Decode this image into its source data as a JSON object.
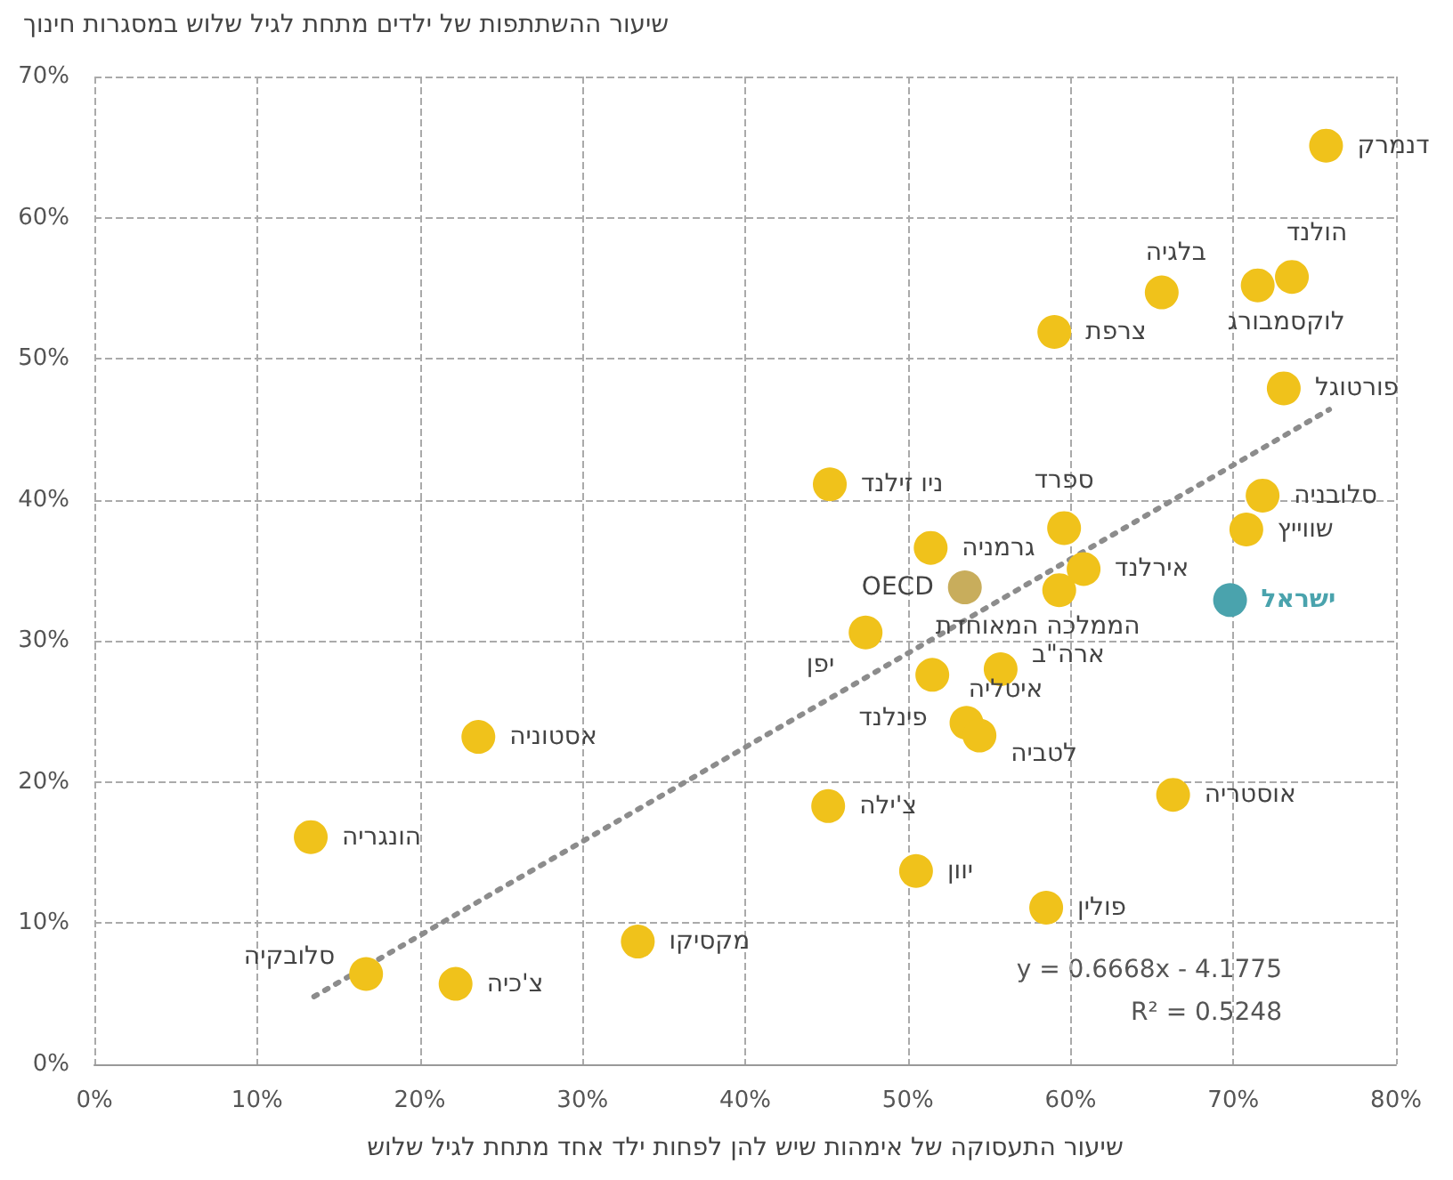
{
  "chart_data": {
    "type": "scatter",
    "ylabel": "שיעור ההשתתפות של ילדים מתחת לגיל שלוש במסגרות חינוך",
    "xlabel": "שיעור התעסוקה של אימהות שיש להן לפחות ילד אחד מתחת לגיל שלוש",
    "xlim": [
      0,
      80
    ],
    "ylim": [
      0,
      70
    ],
    "xticks": [
      {
        "value": 0,
        "label": "0%"
      },
      {
        "value": 10,
        "label": "10%"
      },
      {
        "value": 20,
        "label": "20%"
      },
      {
        "value": 30,
        "label": "30%"
      },
      {
        "value": 40,
        "label": "40%"
      },
      {
        "value": 50,
        "label": "50%"
      },
      {
        "value": 60,
        "label": "60%"
      },
      {
        "value": 70,
        "label": "70%"
      },
      {
        "value": 80,
        "label": "80%"
      }
    ],
    "yticks": [
      {
        "value": 0,
        "label": "0%"
      },
      {
        "value": 10,
        "label": "10%"
      },
      {
        "value": 20,
        "label": "20%"
      },
      {
        "value": 30,
        "label": "30%"
      },
      {
        "value": 40,
        "label": "40%"
      },
      {
        "value": 50,
        "label": "50%"
      },
      {
        "value": 60,
        "label": "60%"
      },
      {
        "value": 70,
        "label": "70%"
      }
    ],
    "grid": true,
    "legend": false,
    "marker": "circle",
    "series": [
      {
        "name": "דנמרק",
        "color": "#f0c21b",
        "x": [
          75.7
        ],
        "values": [
          65.1
        ]
      },
      {
        "name": "הולנד",
        "color": "#f0c21b",
        "x": [
          73.6
        ],
        "values": [
          55.8
        ]
      },
      {
        "name": "לוקסמבורג",
        "color": "#f0c21b",
        "x": [
          71.5
        ],
        "values": [
          55.2
        ]
      },
      {
        "name": "בלגיה",
        "color": "#f0c21b",
        "x": [
          65.6
        ],
        "values": [
          54.7
        ]
      },
      {
        "name": "צרפת",
        "color": "#f0c21b",
        "x": [
          59.0
        ],
        "values": [
          51.9
        ]
      },
      {
        "name": "פורטוגל",
        "color": "#f0c21b",
        "x": [
          73.1
        ],
        "values": [
          47.9
        ]
      },
      {
        "name": "סלובניה",
        "color": "#f0c21b",
        "x": [
          71.8
        ],
        "values": [
          40.3
        ]
      },
      {
        "name": "שווייץ",
        "color": "#f0c21b",
        "x": [
          70.8
        ],
        "values": [
          37.9
        ]
      },
      {
        "name": "ספרד",
        "color": "#f0c21b",
        "x": [
          59.6
        ],
        "values": [
          38.0
        ]
      },
      {
        "name": "ניו זילנד",
        "color": "#f0c21b",
        "x": [
          45.2
        ],
        "values": [
          41.1
        ]
      },
      {
        "name": "גרמניה",
        "color": "#f0c21b",
        "x": [
          51.4
        ],
        "values": [
          36.6
        ]
      },
      {
        "name": "OECD",
        "color": "#c8ad5c",
        "x": [
          53.5
        ],
        "values": [
          33.8
        ]
      },
      {
        "name": "אירלנד",
        "color": "#f0c21b",
        "x": [
          60.8
        ],
        "values": [
          35.1
        ]
      },
      {
        "name": "הממלכה המאוחדת",
        "color": "#f0c21b",
        "x": [
          59.3
        ],
        "values": [
          33.6
        ]
      },
      {
        "name": "ישראל",
        "color": "#4aa3ad",
        "x": [
          69.8
        ],
        "values": [
          32.9
        ]
      },
      {
        "name": "יפן",
        "color": "#f0c21b",
        "x": [
          47.4
        ],
        "values": [
          30.6
        ]
      },
      {
        "name": "ארה\"ב",
        "color": "#f0c21b",
        "x": [
          55.7
        ],
        "values": [
          28.0
        ]
      },
      {
        "name": "פינלנד",
        "color": "#f0c21b",
        "x": [
          51.5
        ],
        "values": [
          27.6
        ]
      },
      {
        "name": "איטליה",
        "color": "#f0c21b",
        "x": [
          53.6
        ],
        "values": [
          24.2
        ]
      },
      {
        "name": "לטביה",
        "color": "#f0c21b",
        "x": [
          54.4
        ],
        "values": [
          23.3
        ]
      },
      {
        "name": "אסטוניה",
        "color": "#f0c21b",
        "x": [
          23.6
        ],
        "values": [
          23.2
        ]
      },
      {
        "name": "אוסטריה",
        "color": "#f0c21b",
        "x": [
          66.3
        ],
        "values": [
          19.1
        ]
      },
      {
        "name": "צ'ילה",
        "color": "#f0c21b",
        "x": [
          45.1
        ],
        "values": [
          18.3
        ]
      },
      {
        "name": "הונגריה",
        "color": "#f0c21b",
        "x": [
          13.3
        ],
        "values": [
          16.1
        ]
      },
      {
        "name": "יוון",
        "color": "#f0c21b",
        "x": [
          50.5
        ],
        "values": [
          13.7
        ]
      },
      {
        "name": "פולין",
        "color": "#f0c21b",
        "x": [
          58.5
        ],
        "values": [
          11.1
        ]
      },
      {
        "name": "מקסיקו",
        "color": "#f0c21b",
        "x": [
          33.4
        ],
        "values": [
          8.7
        ]
      },
      {
        "name": "סלובקיה",
        "color": "#f0c21b",
        "x": [
          16.7
        ],
        "values": [
          6.4
        ]
      },
      {
        "name": "צ'כיה",
        "color": "#f0c21b",
        "x": [
          22.2
        ],
        "values": [
          5.7
        ]
      },
      {
        "type": "line",
        "color": "#8c8c8c",
        "line_style": "dotted",
        "marker": "none",
        "x": [
          13.5,
          75.9
        ],
        "values": [
          4.8,
          46.4
        ]
      }
    ],
    "annotations": [
      "y = 0.6668x - 4.1775",
      "R² = 0.5248"
    ]
  }
}
